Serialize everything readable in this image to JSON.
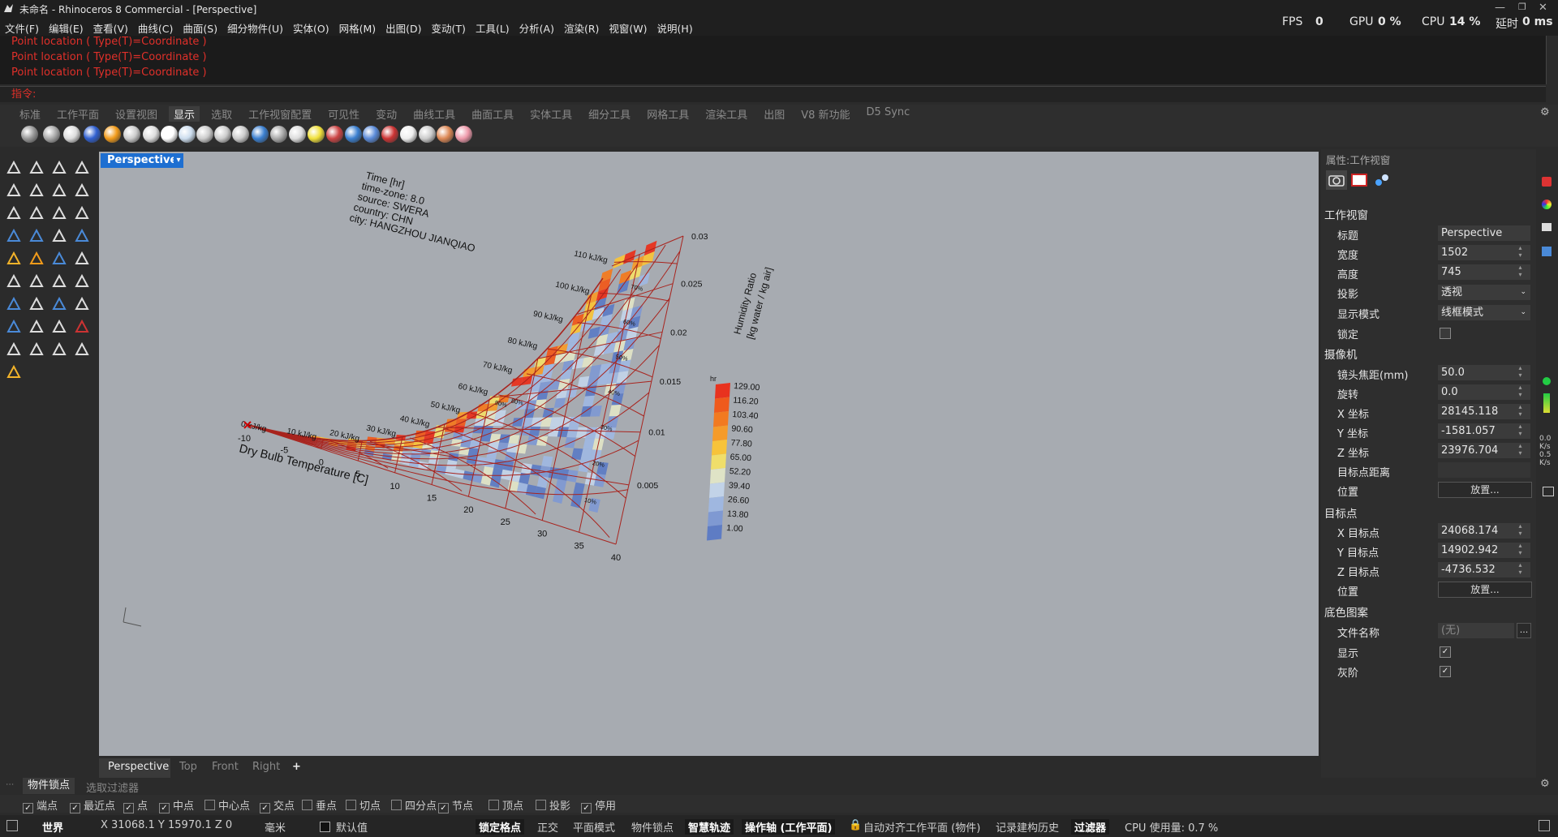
{
  "window": {
    "title": "未命名 - Rhinoceros 8 Commercial - [Perspective]"
  },
  "menu": [
    "文件(F)",
    "编辑(E)",
    "查看(V)",
    "曲线(C)",
    "曲面(S)",
    "细分物件(U)",
    "实体(O)",
    "网格(M)",
    "出图(D)",
    "变动(T)",
    "工具(L)",
    "分析(A)",
    "渲染(R)",
    "视窗(W)",
    "说明(H)"
  ],
  "stats": {
    "fps_label": "FPS",
    "fps": "0",
    "gpu_label": "GPU",
    "gpu": "0 %",
    "cpu_label": "CPU",
    "cpu": "14 %",
    "delay_label": "延时",
    "delay": "0 ms"
  },
  "command": {
    "history": [
      "Point location ( Type(T)=Coordinate )",
      "Point location ( Type(T)=Coordinate )",
      "Point location ( Type(T)=Coordinate )"
    ],
    "prompt": "指令:"
  },
  "toolbar_tabs": [
    "标准",
    "工作平面",
    "设置视图",
    "显示",
    "选取",
    "工作视窗配置",
    "可见性",
    "变动",
    "曲线工具",
    "曲面工具",
    "实体工具",
    "细分工具",
    "网格工具",
    "渲染工具",
    "出图",
    "V8 新功能",
    "D5 Sync"
  ],
  "active_tab": "显示",
  "viewport": {
    "label": "Perspective",
    "tabs": [
      "Perspective",
      "Top",
      "Front",
      "Right",
      "+"
    ],
    "info_lines": [
      "Time [hr]",
      "time-zone: 8.0",
      "source: SWERA",
      "country: CHN",
      "city: HANGZHOU JIANQIAO"
    ],
    "x_axis_title": "Dry Bulb Temperature [C]",
    "x_ticks": [
      "-10",
      "-5",
      "0",
      "5",
      "10",
      "15",
      "20",
      "25",
      "30",
      "35",
      "40"
    ],
    "y_axis_title_1": "Humidity Ratio",
    "y_axis_title_2": "[kg water / kg air]",
    "y_ticks": [
      "0.005",
      "0.01",
      "0.015",
      "0.02",
      "0.025",
      "0.03"
    ],
    "enthalpy_labels": [
      "0 kJ/kg",
      "10 kJ/kg",
      "20 kJ/kg",
      "30 kJ/kg",
      "40 kJ/kg",
      "50 kJ/kg",
      "60 kJ/kg",
      "70 kJ/kg",
      "80 kJ/kg",
      "90 kJ/kg",
      "100 kJ/kg",
      "110 kJ/kg"
    ],
    "rh_labels": [
      "10%",
      "20%",
      "30%",
      "40%",
      "50%",
      "60%",
      "70%",
      "80%",
      "90%"
    ],
    "legend_title": "hr",
    "legend_values": [
      "129.00",
      "116.20",
      "103.40",
      "90.60",
      "77.80",
      "65.00",
      "52.20",
      "39.40",
      "26.60",
      "13.80",
      "1.00"
    ],
    "legend_colors": [
      "#e8321e",
      "#ef5a1c",
      "#f27a20",
      "#f59b2a",
      "#f7c33a",
      "#f0de6a",
      "#dfe3c6",
      "#c2d3e8",
      "#9fb7e0",
      "#7f99d2",
      "#5e7cc4"
    ]
  },
  "properties": {
    "header": "属性:工作视窗",
    "sec_viewport": "工作视窗",
    "title_label": "标题",
    "title": "Perspective",
    "width_label": "宽度",
    "width": "1502",
    "height_label": "高度",
    "height": "745",
    "projection_label": "投影",
    "projection": "透视",
    "display_label": "显示模式",
    "display": "线框模式",
    "lock_label": "锁定",
    "sec_camera": "摄像机",
    "focal_label": "镜头焦距(mm)",
    "focal": "50.0",
    "rotation_label": "旋转",
    "rotation": "0.0",
    "cx_label": "X 坐标",
    "cx": "28145.118",
    "cy_label": "Y 坐标",
    "cy": "-1581.057",
    "cz_label": "Z 坐标",
    "cz": "23976.704",
    "tdist_label": "目标点距离",
    "cpos_label": "位置",
    "place_btn": "放置...",
    "sec_target": "目标点",
    "tx_label": "X 目标点",
    "tx": "24068.174",
    "ty_label": "Y 目标点",
    "ty": "14902.942",
    "tz_label": "Z 目标点",
    "tz": "-4736.532",
    "tpos_label": "位置",
    "sec_bg": "底色图案",
    "file_label": "文件名称",
    "file": "(无)",
    "show_label": "显示",
    "gray_label": "灰阶"
  },
  "snaps": {
    "tab1": "物件锁点",
    "tab2": "选取过滤器",
    "items": [
      "端点",
      "最近点",
      "点",
      "中点",
      "中心点",
      "交点",
      "垂点",
      "切点",
      "四分点",
      "节点",
      "顶点",
      "投影",
      "停用"
    ],
    "checked": [
      true,
      true,
      true,
      true,
      false,
      true,
      false,
      false,
      false,
      true,
      false,
      false,
      true
    ]
  },
  "status": {
    "cplane": "世界",
    "coords": "X 31068.1 Y 15970.1 Z 0",
    "units": "毫米",
    "layer": "默认值",
    "grid_snap": "锁定格点",
    "ortho": "正交",
    "planar": "平面模式",
    "osnap": "物件锁点",
    "smarttrack": "智慧轨迹",
    "gumball": "操作轴 (工作平面)",
    "autoalign": "自动对齐工作平面 (物件)",
    "history": "记录建构历史",
    "filter": "过滤器",
    "cpu": "CPU 使用量: 0.7 %"
  }
}
